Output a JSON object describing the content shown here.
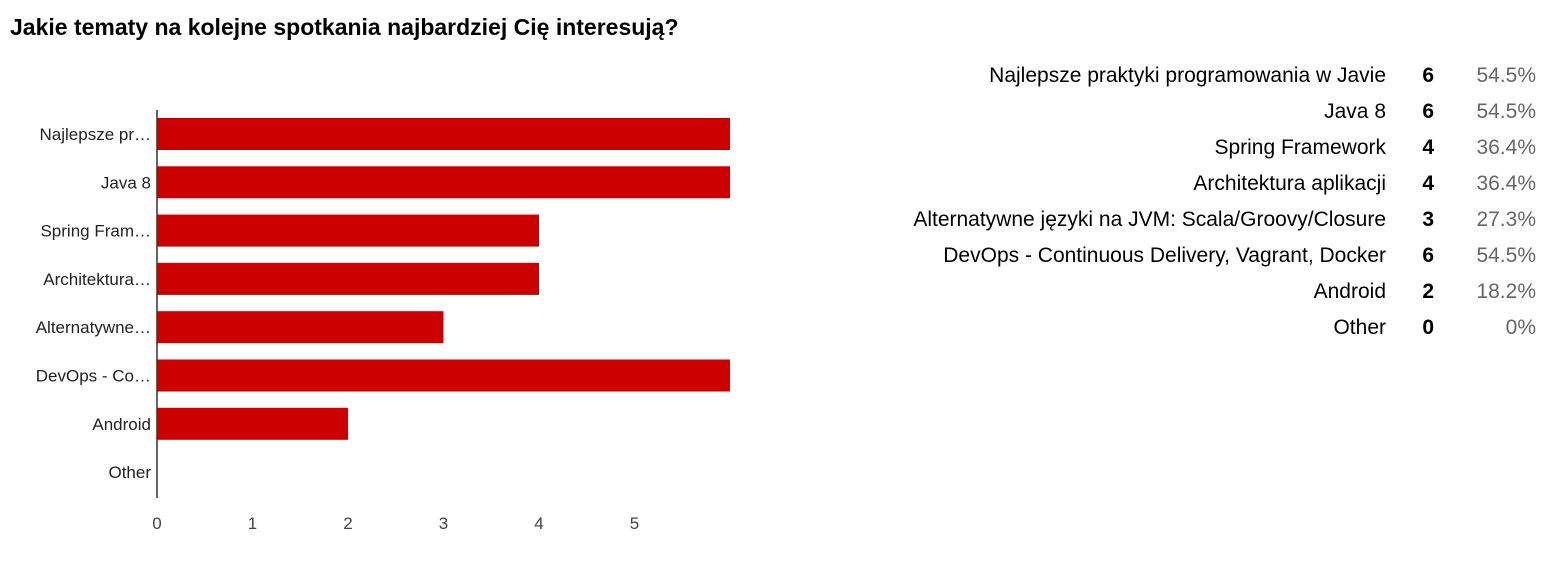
{
  "title": "Jakie tematy na kolejne spotkania najbardziej Cię interesują?",
  "chart_data": {
    "type": "bar",
    "orientation": "horizontal",
    "categories": [
      "Najlepsze pr…",
      "Java 8",
      "Spring Fram…",
      "Architektura…",
      "Alternatywne…",
      "DevOps - Co…",
      "Android",
      "Other"
    ],
    "values": [
      6,
      6,
      4,
      4,
      3,
      6,
      2,
      0
    ],
    "xticks": [
      0,
      1,
      2,
      3,
      4,
      5
    ],
    "xlim": [
      0,
      6
    ],
    "bar_color": "#cc0000",
    "grid": false
  },
  "legend": {
    "items": [
      {
        "label": "Najlepsze praktyki programowania w Javie",
        "count": "6",
        "percent": "54.5%"
      },
      {
        "label": "Java 8",
        "count": "6",
        "percent": "54.5%"
      },
      {
        "label": "Spring Framework",
        "count": "4",
        "percent": "36.4%"
      },
      {
        "label": "Architektura aplikacji",
        "count": "4",
        "percent": "36.4%"
      },
      {
        "label": "Alternatywne języki na JVM: Scala/Groovy/Closure",
        "count": "3",
        "percent": "27.3%"
      },
      {
        "label": "DevOps - Continuous Delivery, Vagrant, Docker",
        "count": "6",
        "percent": "54.5%"
      },
      {
        "label": "Android",
        "count": "2",
        "percent": "18.2%"
      },
      {
        "label": "Other",
        "count": "0",
        "percent": "0%"
      }
    ]
  }
}
